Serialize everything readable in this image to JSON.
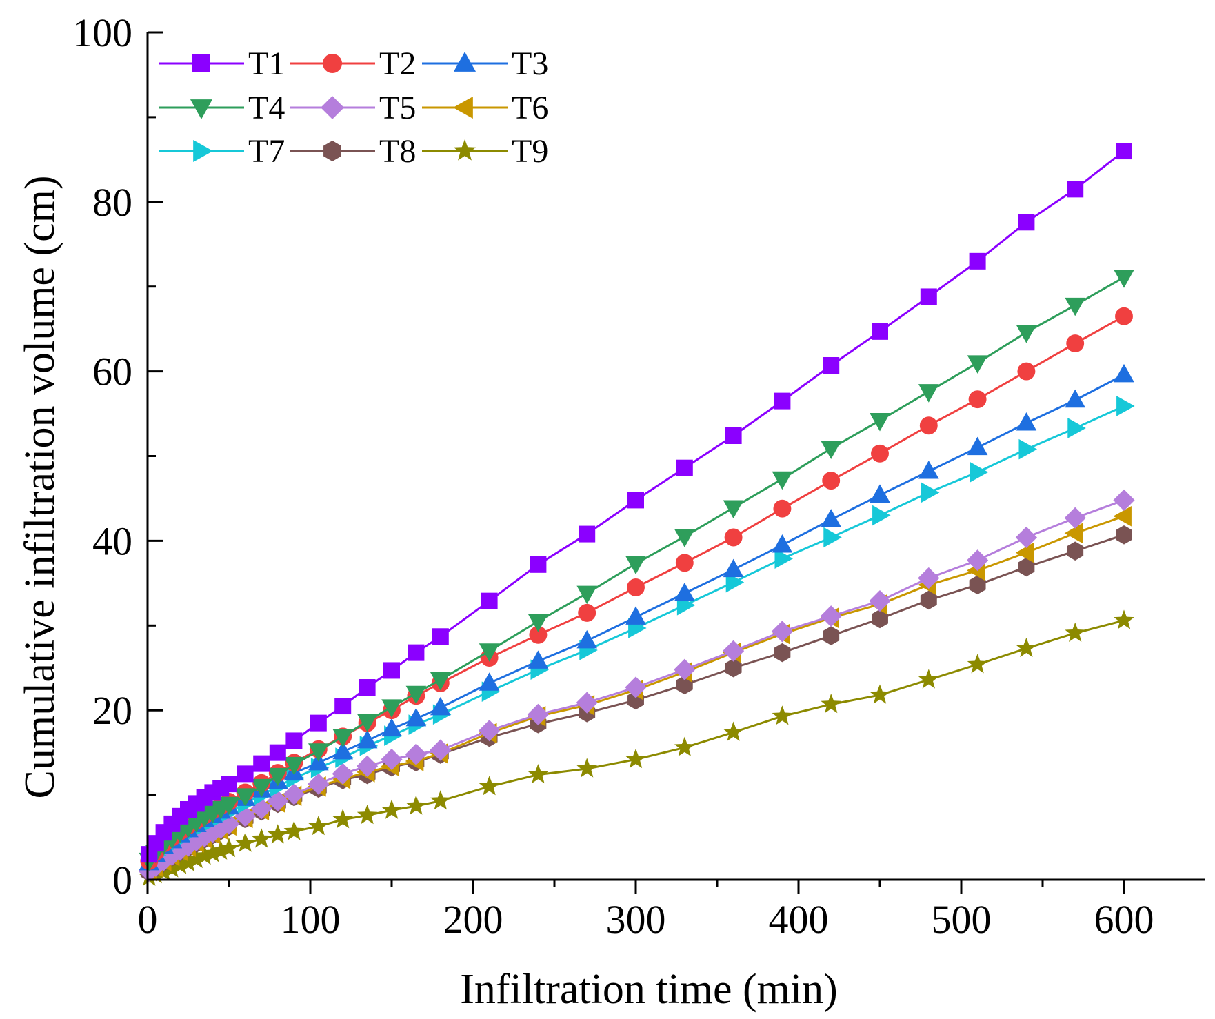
{
  "chart_data": {
    "type": "line",
    "title": "",
    "xlabel": "Infiltration time (min)",
    "ylabel": "Cumulative infiltration volume (cm)",
    "xlim": [
      0,
      650
    ],
    "ylim": [
      0,
      100
    ],
    "xticks": [
      0,
      100,
      200,
      300,
      400,
      500,
      600
    ],
    "yticks": [
      0,
      20,
      40,
      60,
      80,
      100
    ],
    "xtick_labels": [
      "0",
      "100",
      "200",
      "300",
      "400",
      "500",
      "600"
    ],
    "ytick_labels": [
      "0",
      "20",
      "40",
      "60",
      "80",
      "100"
    ],
    "grid": false,
    "legend_position": "top-left",
    "x": [
      1,
      5,
      10,
      15,
      20,
      25,
      30,
      35,
      40,
      45,
      50,
      60,
      70,
      80,
      90,
      105,
      120,
      135,
      150,
      165,
      180,
      210,
      240,
      270,
      300,
      330,
      360,
      390,
      420,
      450,
      480,
      510,
      540,
      570,
      600
    ],
    "series": [
      {
        "name": "T1",
        "color": "#8B00FF",
        "marker": "square",
        "values": [
          3.0,
          4.3,
          5.6,
          6.6,
          7.5,
          8.3,
          9.0,
          9.7,
          10.3,
          10.8,
          11.3,
          12.5,
          13.7,
          15.0,
          16.4,
          18.5,
          20.5,
          22.7,
          24.7,
          26.8,
          28.7,
          32.9,
          37.2,
          40.8,
          44.8,
          48.6,
          52.4,
          56.5,
          60.7,
          64.7,
          68.8,
          73.0,
          77.6,
          81.5,
          86.0
        ]
      },
      {
        "name": "T2",
        "color": "#F04040",
        "marker": "circle",
        "values": [
          2.2,
          3.3,
          4.3,
          5.0,
          5.7,
          6.4,
          7.0,
          7.6,
          8.2,
          8.7,
          9.2,
          10.3,
          11.4,
          12.6,
          13.8,
          15.4,
          16.9,
          18.5,
          20.0,
          21.7,
          23.2,
          26.2,
          28.9,
          31.5,
          34.5,
          37.4,
          40.4,
          43.8,
          47.1,
          50.3,
          53.6,
          56.7,
          60.0,
          63.3,
          66.5
        ]
      },
      {
        "name": "T3",
        "color": "#1E6FE0",
        "marker": "triangle-up",
        "values": [
          2.0,
          3.0,
          3.9,
          4.6,
          5.3,
          5.9,
          6.5,
          7.1,
          7.6,
          8.1,
          8.6,
          9.6,
          10.6,
          11.6,
          12.6,
          13.8,
          15.1,
          16.4,
          17.8,
          19.0,
          20.3,
          23.2,
          25.8,
          28.2,
          31.0,
          33.8,
          36.6,
          39.5,
          42.5,
          45.4,
          48.2,
          51.0,
          53.9,
          56.6,
          59.6
        ]
      },
      {
        "name": "T4",
        "color": "#2E9E5B",
        "marker": "triangle-down",
        "values": [
          2.3,
          3.2,
          4.2,
          4.9,
          5.6,
          6.2,
          6.8,
          7.4,
          7.9,
          8.4,
          8.9,
          9.9,
          11.0,
          12.3,
          13.6,
          15.2,
          16.9,
          18.7,
          20.4,
          22.0,
          23.6,
          27.0,
          30.5,
          33.8,
          37.3,
          40.5,
          43.9,
          47.3,
          50.9,
          54.2,
          57.6,
          61.0,
          64.6,
          67.8,
          71.1
        ]
      },
      {
        "name": "T5",
        "color": "#B57EDC",
        "marker": "diamond",
        "values": [
          1.0,
          1.6,
          2.3,
          2.9,
          3.5,
          4.0,
          4.6,
          5.1,
          5.6,
          6.1,
          6.6,
          7.5,
          8.4,
          9.3,
          10.1,
          11.3,
          12.5,
          13.4,
          14.2,
          14.8,
          15.3,
          17.6,
          19.5,
          20.9,
          22.7,
          24.8,
          27.0,
          29.3,
          31.1,
          32.9,
          35.6,
          37.7,
          40.4,
          42.7,
          44.8
        ]
      },
      {
        "name": "T6",
        "color": "#C99700",
        "marker": "triangle-left",
        "values": [
          1.0,
          1.5,
          2.2,
          2.8,
          3.4,
          3.9,
          4.4,
          4.9,
          5.4,
          5.9,
          6.4,
          7.3,
          8.2,
          9.1,
          9.9,
          11.0,
          11.9,
          12.7,
          13.4,
          14.0,
          14.9,
          17.3,
          19.3,
          20.6,
          22.4,
          24.5,
          26.8,
          29.0,
          30.9,
          32.5,
          34.8,
          36.5,
          38.6,
          40.9,
          42.9
        ]
      },
      {
        "name": "T7",
        "color": "#16C8D8",
        "marker": "triangle-right",
        "values": [
          2.3,
          2.9,
          3.6,
          4.3,
          4.9,
          5.5,
          6.0,
          6.5,
          7.0,
          7.5,
          8.0,
          9.0,
          10.0,
          11.0,
          12.0,
          13.2,
          14.4,
          15.8,
          17.0,
          18.3,
          19.5,
          22.2,
          24.8,
          27.1,
          29.7,
          32.4,
          35.1,
          37.9,
          40.4,
          43.0,
          45.7,
          48.1,
          50.8,
          53.3,
          55.9
        ]
      },
      {
        "name": "T8",
        "color": "#7A5353",
        "marker": "hexagon",
        "values": [
          0.9,
          1.4,
          2.1,
          2.7,
          3.3,
          3.8,
          4.3,
          4.8,
          5.3,
          5.8,
          6.3,
          7.2,
          8.1,
          9.0,
          9.8,
          10.8,
          11.8,
          12.4,
          13.3,
          13.9,
          14.8,
          16.8,
          18.4,
          19.7,
          21.2,
          23.0,
          25.0,
          26.8,
          28.8,
          30.8,
          33.0,
          34.8,
          36.9,
          38.8,
          40.7
        ]
      },
      {
        "name": "T9",
        "color": "#8C8A00",
        "marker": "star",
        "values": [
          0.3,
          0.6,
          0.9,
          1.3,
          1.7,
          2.0,
          2.4,
          2.8,
          3.1,
          3.4,
          3.7,
          4.3,
          4.8,
          5.3,
          5.7,
          6.3,
          7.1,
          7.6,
          8.2,
          8.7,
          9.3,
          11.0,
          12.4,
          13.1,
          14.2,
          15.6,
          17.4,
          19.3,
          20.7,
          21.8,
          23.6,
          25.4,
          27.3,
          29.1,
          30.6
        ]
      }
    ]
  }
}
